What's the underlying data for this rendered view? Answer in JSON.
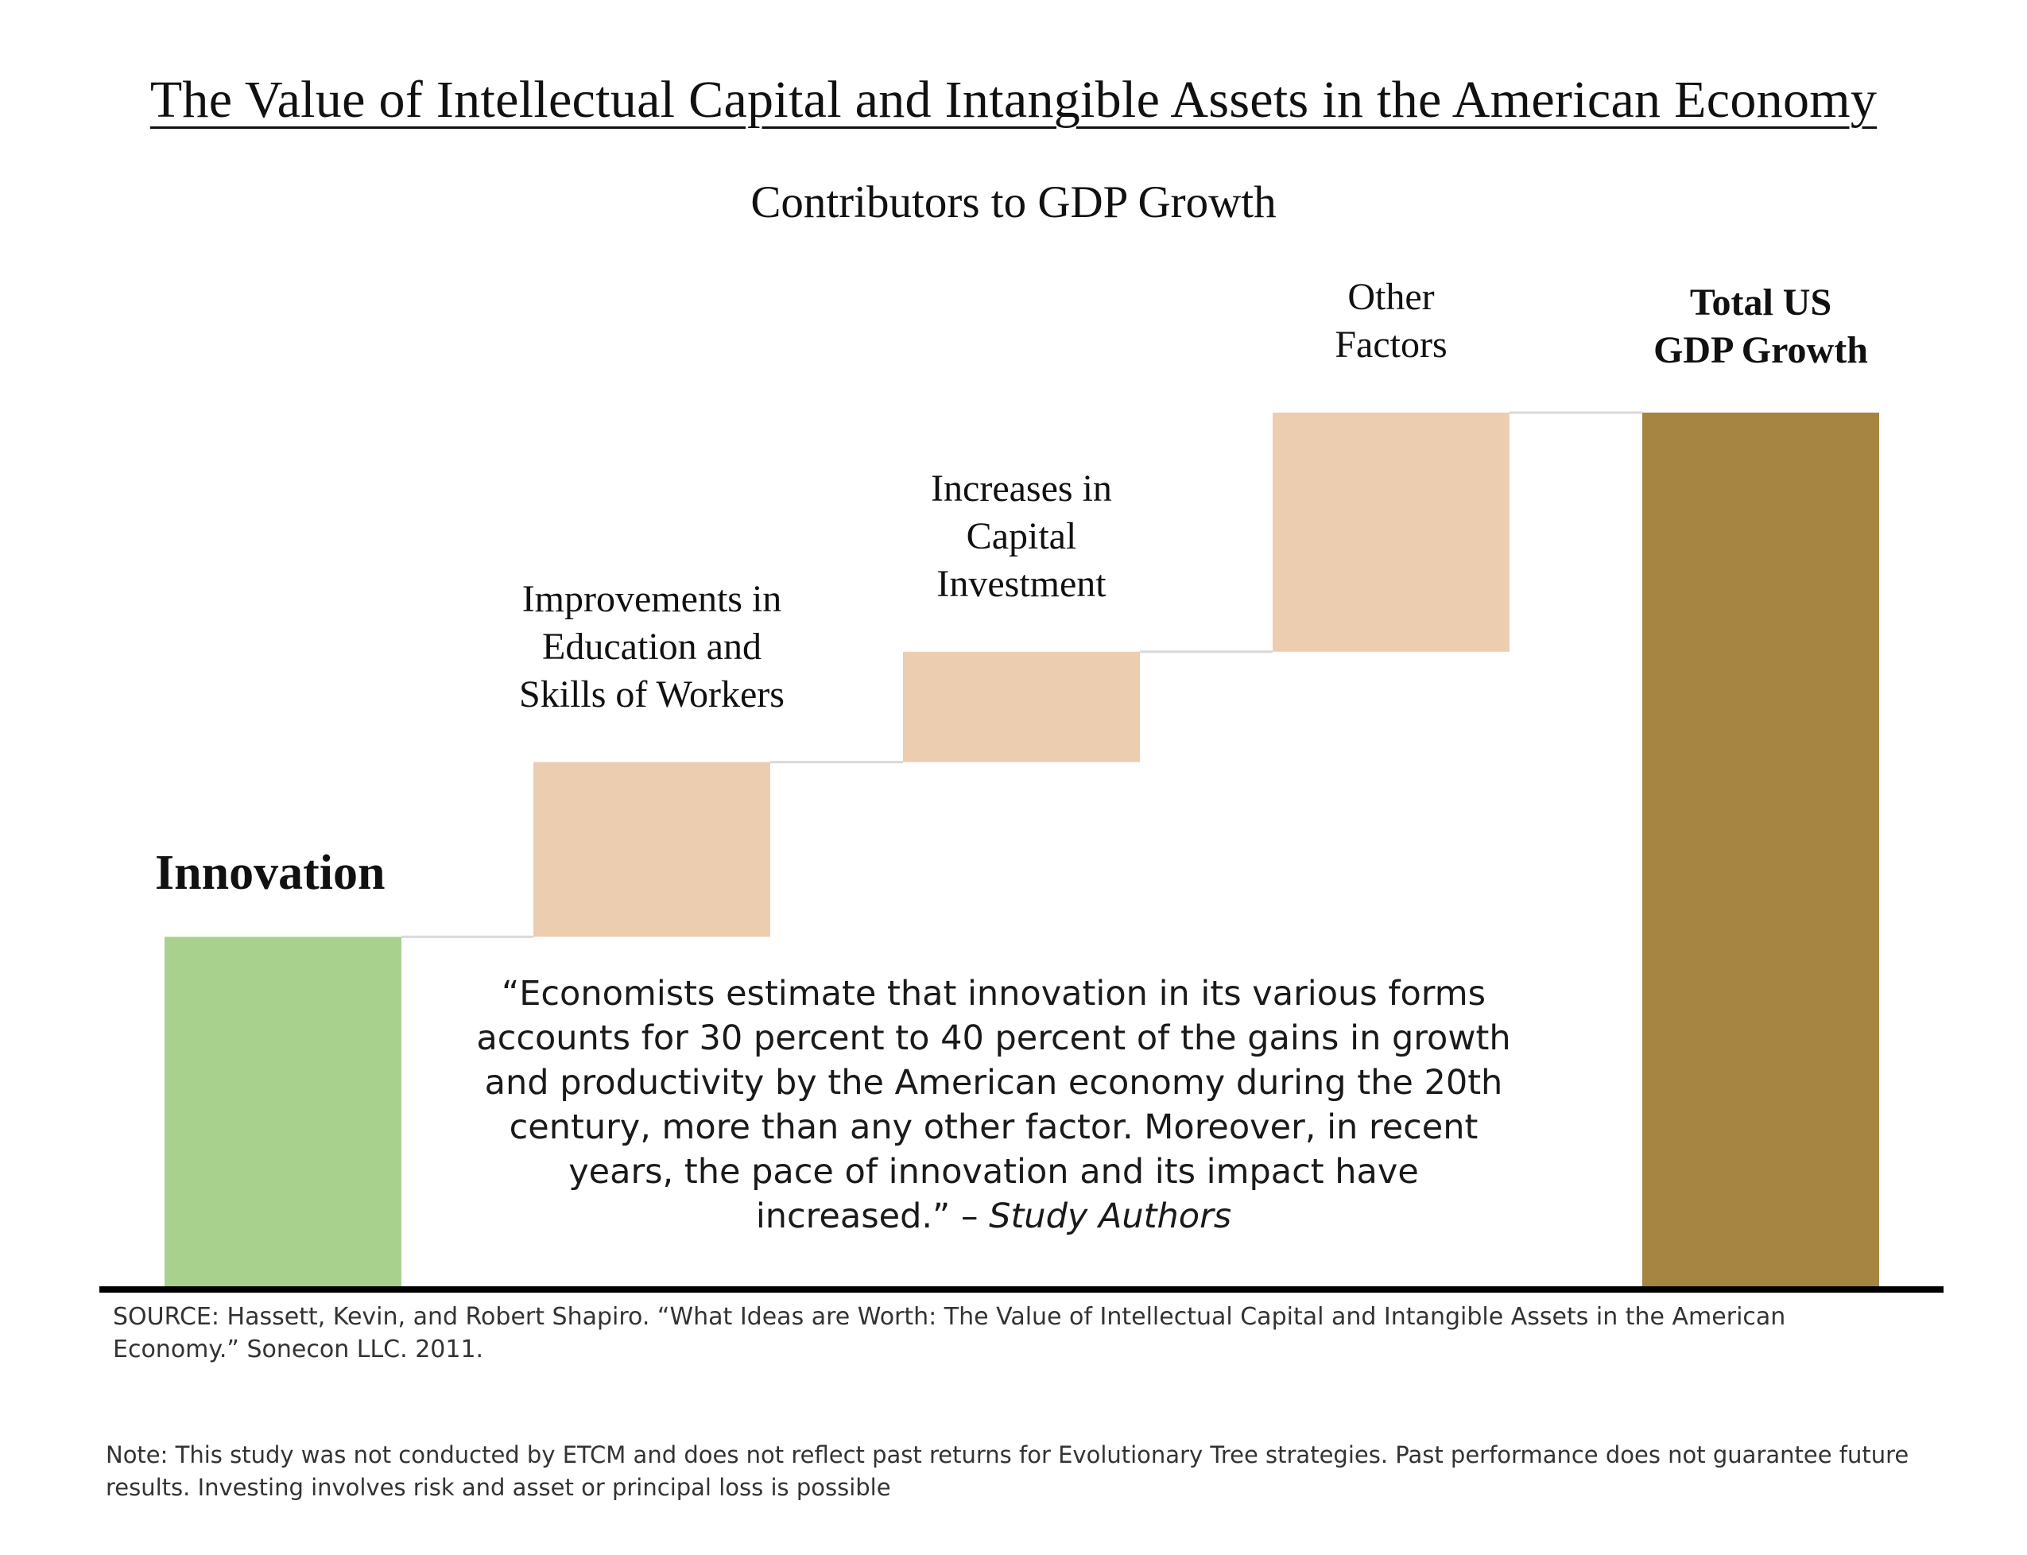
{
  "chart_data": {
    "type": "bar",
    "variant": "waterfall",
    "title": "The Value of Intellectual Capital and Intangible Assets in the American Economy",
    "subtitle": "Contributors to GDP Growth",
    "categories": [
      "Innovation",
      "Improvements in\nEducation and\nSkills of Workers",
      "Increases in\nCapital\nInvestment",
      "Other\nFactors",
      "Total US\nGDP Growth"
    ],
    "values": [
      {
        "start": 0,
        "end": 38
      },
      {
        "start": 38,
        "end": 57
      },
      {
        "start": 57,
        "end": 69
      },
      {
        "start": 69,
        "end": 95
      },
      {
        "start": 0,
        "end": 95
      }
    ],
    "value_unit": "percent of total GDP growth (approximate, no numeric axis shown)",
    "ylim": [
      0,
      100
    ],
    "grid": false,
    "legend": "none",
    "colors": {
      "innovation": "#a9d18e",
      "contributor": "#edcdb0",
      "total": "#a68543",
      "connector": "#d9d9d9",
      "baseline": "#000000"
    }
  },
  "quote": {
    "text": "“Economists estimate that innovation in its various forms accounts for 30 percent to 40 percent of the gains in growth and productivity by the American economy during the 20th century, more than any other factor.  Moreover, in recent years, the pace of innovation and its impact have increased.”",
    "dash": " – ",
    "attribution": "Study Authors"
  },
  "source": "SOURCE: Hassett, Kevin, and Robert Shapiro. “What Ideas are Worth: The Value of Intellectual Capital and Intangible Assets in the American Economy.” Sonecon LLC. 2011.",
  "note": "Note: This study was not conducted by ETCM and does not reflect past returns for Evolutionary Tree strategies. Past performance does not guarantee future results.  Investing involves risk and asset or principal loss is possible"
}
